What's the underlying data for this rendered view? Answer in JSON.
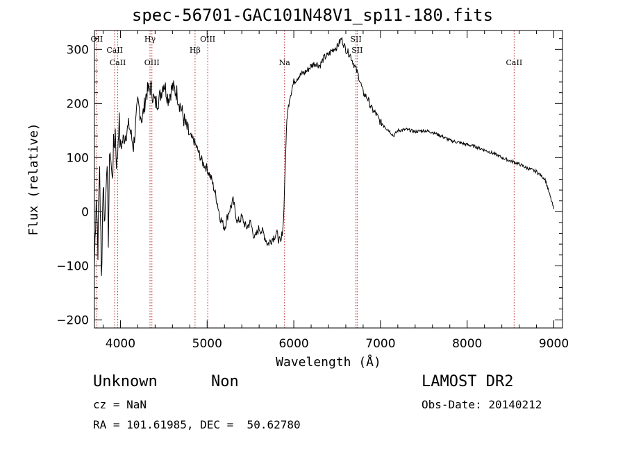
{
  "chart_data": {
    "type": "line",
    "title": "spec-56701-GAC101N48V1_sp11-180.fits",
    "xlabel": "Wavelength (Å)",
    "ylabel": "Flux (relative)",
    "xlim": [
      3700,
      9100
    ],
    "ylim": [
      -215,
      335
    ],
    "xticks": [
      4000,
      5000,
      6000,
      7000,
      8000,
      9000
    ],
    "xtick_labels": [
      "4000",
      "5000",
      "6000",
      "7000",
      "8000",
      "9000"
    ],
    "yticks": [
      -200,
      -100,
      0,
      100,
      200,
      300
    ],
    "ytick_labels": [
      "−200",
      "−100",
      "0",
      "100",
      "200",
      "300"
    ],
    "grid": false,
    "legend": "none",
    "line_color": "#000000",
    "marker_color": "#b22222",
    "spectral_lines": [
      {
        "name": "OII",
        "wavelength": 3727
      },
      {
        "name": "CaII",
        "wavelength": 3934
      },
      {
        "name": "CaII",
        "wavelength": 3969
      },
      {
        "name": "Hγ",
        "wavelength": 4341
      },
      {
        "name": "OIII",
        "wavelength": 4363
      },
      {
        "name": "Hβ",
        "wavelength": 4861
      },
      {
        "name": "OIII",
        "wavelength": 5007
      },
      {
        "name": "Na",
        "wavelength": 5893
      },
      {
        "name": "SII",
        "wavelength": 6717
      },
      {
        "name": "SII",
        "wavelength": 6731
      },
      {
        "name": "CaII",
        "wavelength": 8542
      }
    ],
    "series": [
      {
        "x": [
          3700,
          3720,
          3740,
          3760,
          3780,
          3800,
          3820,
          3840,
          3860,
          3880,
          3900,
          3920,
          3940,
          3960,
          3980,
          4000,
          4050,
          4100,
          4150,
          4200,
          4250,
          4300,
          4350,
          4400,
          4450,
          4500,
          4550,
          4600,
          4650,
          4700,
          4750,
          4800,
          4850,
          4900,
          4950,
          5000,
          5050,
          5100,
          5150,
          5200,
          5250,
          5300,
          5350,
          5400,
          5450,
          5500,
          5550,
          5600,
          5650,
          5700,
          5750,
          5800,
          5850,
          5880,
          5900,
          5920,
          5950,
          6000,
          6050,
          6100,
          6150,
          6200,
          6250,
          6300,
          6350,
          6400,
          6450,
          6500,
          6550,
          6600,
          6650,
          6700,
          6750,
          6800,
          6850,
          6900,
          6950,
          7000,
          7050,
          7100,
          7150,
          7200,
          7300,
          7400,
          7500,
          7600,
          7700,
          7800,
          7900,
          8000,
          8100,
          8200,
          8300,
          8400,
          8500,
          8600,
          8700,
          8800,
          8900,
          9000
        ],
        "y": [
          -100,
          40,
          -60,
          90,
          -130,
          60,
          -20,
          100,
          -40,
          130,
          60,
          110,
          150,
          80,
          170,
          120,
          140,
          160,
          120,
          200,
          170,
          220,
          230,
          200,
          210,
          240,
          210,
          230,
          220,
          190,
          160,
          140,
          130,
          110,
          90,
          80,
          60,
          30,
          -10,
          -30,
          0,
          20,
          -20,
          -10,
          -30,
          -20,
          -50,
          -30,
          -40,
          -60,
          -50,
          -40,
          -60,
          -20,
          80,
          170,
          210,
          240,
          250,
          255,
          260,
          270,
          275,
          270,
          285,
          290,
          300,
          305,
          320,
          300,
          290,
          270,
          250,
          220,
          210,
          190,
          180,
          165,
          160,
          150,
          140,
          150,
          152,
          148,
          150,
          147,
          140,
          132,
          128,
          124,
          120,
          114,
          108,
          100,
          94,
          88,
          80,
          74,
          60,
          5
        ]
      }
    ]
  },
  "footer": {
    "object_type": "Unknown",
    "object_subtype": "Non",
    "survey": "LAMOST DR2",
    "cz": "cz = NaN",
    "obs_date": "Obs-Date: 20140212",
    "ra_dec": "RA = 101.61985, DEC =  50.62780"
  }
}
